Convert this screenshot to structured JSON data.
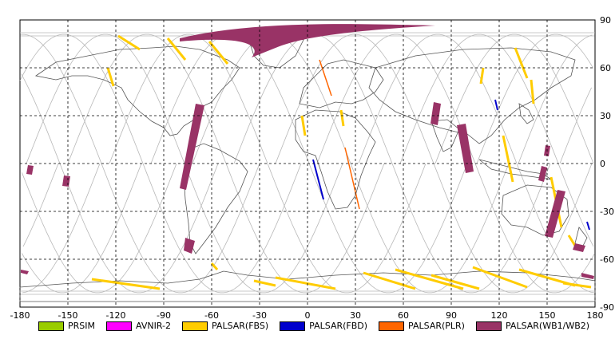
{
  "map": {
    "x_ticks": [
      "-180",
      "-150",
      "-120",
      "-90",
      "-60",
      "-30",
      "0",
      "30",
      "60",
      "90",
      "120",
      "150",
      "180"
    ],
    "y_ticks": [
      "90",
      "60",
      "30",
      "0",
      "-30",
      "-60",
      "-90"
    ],
    "x_range": [
      -180,
      180
    ],
    "y_range": [
      -90,
      90
    ],
    "grid": "dashed"
  },
  "legend": [
    {
      "label": "PRSIM",
      "color": "#99cc00"
    },
    {
      "label": "AVNIR-2",
      "color": "#ff00ff"
    },
    {
      "label": "PALSAR(FBS)",
      "color": "#ffcc00"
    },
    {
      "label": "PALSAR(FBD)",
      "color": "#0000cc"
    },
    {
      "label": "PALSAR(PLR)",
      "color": "#ff6600"
    },
    {
      "label": "PALSAR(WB1/WB2)",
      "color": "#993366"
    }
  ],
  "colors": {
    "land_outline": "#555555",
    "orbit": "#b8b8b8",
    "grid": "#000000"
  }
}
